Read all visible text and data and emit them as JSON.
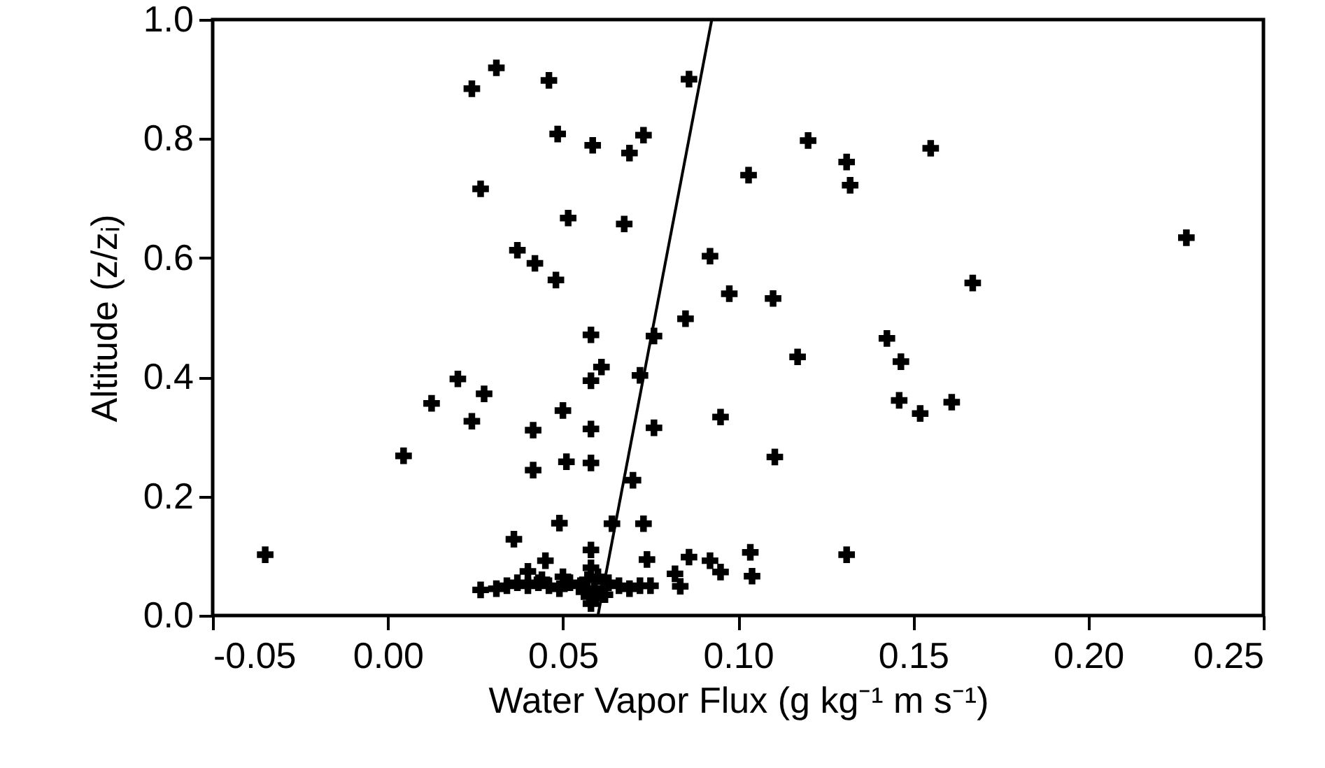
{
  "chart_data": {
    "type": "scatter",
    "xlabel": "Water Vapor Flux (g kg⁻¹ m s⁻¹)",
    "ylabel": "Altitude (z/zᵢ)",
    "xlim": [
      -0.05,
      0.25
    ],
    "ylim": [
      0,
      1
    ],
    "xticks": [
      {
        "value": -0.05,
        "label": "-0.05"
      },
      {
        "value": 0,
        "label": "0.00"
      },
      {
        "value": 0.05,
        "label": "0.05"
      },
      {
        "value": 0.1,
        "label": "0.10"
      },
      {
        "value": 0.15,
        "label": "0.15"
      },
      {
        "value": 0.2,
        "label": "0.20"
      },
      {
        "value": 0.25,
        "label": "0.25"
      }
    ],
    "yticks": [
      {
        "value": 0,
        "label": "0.0"
      },
      0.2,
      0.4,
      0.6,
      0.8,
      {
        "value": 1,
        "label": "1.0"
      }
    ],
    "grid": false,
    "series": [
      {
        "color": "#000000",
        "marker": "cross",
        "x": [
          0.024,
          0.031,
          0.046,
          0.086,
          0.0485,
          0.0585,
          0.069,
          0.073,
          0.103,
          0.0265,
          0.0515,
          0.0675,
          0.037,
          0.042,
          0.048,
          0.092,
          0.0975,
          0.11,
          0.085,
          0.058,
          0.076,
          0.12,
          0.131,
          0.132,
          0.155,
          0.228,
          0.167,
          0.1425,
          0.117,
          0.1465,
          0.095,
          0.1105,
          0.146,
          0.152,
          0.161,
          0.092,
          0.095,
          0.1035,
          0.104,
          0.131,
          -0.035,
          0.0045,
          0.0125,
          0.02,
          0.0275,
          0.024,
          0.0415,
          0.0415,
          0.05,
          0.051,
          0.061,
          0.058,
          0.072,
          0.058,
          0.058,
          0.076,
          0.07,
          0.049,
          0.036,
          0.064,
          0.073,
          0.045,
          0.058,
          0.074,
          0.086,
          0.082,
          0.0835,
          0.0265,
          0.04,
          0.031,
          0.034,
          0.037,
          0.04,
          0.043,
          0.046,
          0.049,
          0.052,
          0.055,
          0.057,
          0.059,
          0.063,
          0.066,
          0.069,
          0.072,
          0.075,
          0.058,
          0.059,
          0.06,
          0.058,
          0.056,
          0.062,
          0.044,
          0.05
        ],
        "values": [
          0.884,
          0.919,
          0.898,
          0.9,
          0.808,
          0.789,
          0.776,
          0.806,
          0.739,
          0.716,
          0.667,
          0.657,
          0.613,
          0.591,
          0.563,
          0.603,
          0.54,
          0.532,
          0.498,
          0.471,
          0.469,
          0.797,
          0.761,
          0.722,
          0.784,
          0.634,
          0.558,
          0.465,
          0.434,
          0.426,
          0.333,
          0.266,
          0.361,
          0.339,
          0.358,
          0.092,
          0.073,
          0.106,
          0.066,
          0.102,
          0.102,
          0.268,
          0.356,
          0.397,
          0.372,
          0.326,
          0.311,
          0.244,
          0.344,
          0.258,
          0.417,
          0.394,
          0.403,
          0.313,
          0.256,
          0.315,
          0.227,
          0.155,
          0.128,
          0.154,
          0.154,
          0.092,
          0.11,
          0.094,
          0.098,
          0.07,
          0.049,
          0.043,
          0.074,
          0.045,
          0.05,
          0.055,
          0.05,
          0.055,
          0.05,
          0.045,
          0.055,
          0.05,
          0.06,
          0.045,
          0.055,
          0.05,
          0.045,
          0.05,
          0.05,
          0.08,
          0.03,
          0.065,
          0.02,
          0.04,
          0.035,
          0.06,
          0.065
        ]
      },
      {
        "type": "line",
        "color": "#000000",
        "x": [
          0.06,
          0.0925
        ],
        "values": [
          0,
          1
        ]
      }
    ]
  }
}
